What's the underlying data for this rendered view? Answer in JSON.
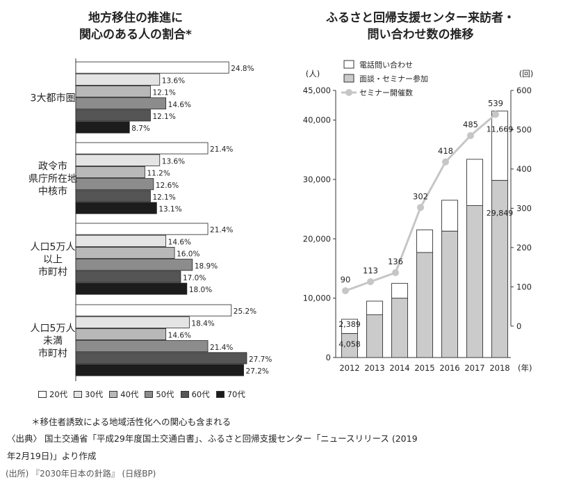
{
  "left": {
    "title_line1": "地方移住の推進に",
    "title_line2": "関心のある人の割合*"
  },
  "right": {
    "title_line1": "ふるさと回帰支援センター来訪者・",
    "title_line2": "問い合わせ数の推移",
    "y_unit_left": "(人)",
    "y_unit_right": "(回)",
    "x_unit": "(年)"
  },
  "notes": {
    "footnote": "＊移住者誘致による地域活性化への関心も含まれる",
    "source_line1": "〈出典〉 国土交通省「平成29年度国土交通白書」、ふるさと回帰支援センター「ニュースリリース (2019",
    "source_line2": "年2月19日)」より作成",
    "credit": "(出所) 『2030年日本の針路』 (日経BP)"
  },
  "colors": {
    "age20": "#ffffff",
    "age30": "#e4e4e4",
    "age40": "#b8b8b8",
    "age50": "#8c8c8c",
    "age60": "#555555",
    "age70": "#1c1c1c",
    "inquiry": "#ffffff",
    "seminar_bar": "#cbcbcb",
    "line": "#c6c6c6"
  },
  "chart_data": [
    {
      "type": "bar",
      "orientation": "horizontal",
      "categories": [
        {
          "label_lines": [
            "3大都市圏"
          ],
          "values": [
            24.8,
            13.6,
            12.1,
            14.6,
            12.1,
            8.7
          ]
        },
        {
          "label_lines": [
            "政令市",
            "県庁所在地",
            "中核市"
          ],
          "values": [
            21.4,
            13.6,
            11.2,
            12.6,
            12.1,
            13.1
          ]
        },
        {
          "label_lines": [
            "人口5万人",
            "以上",
            "市町村"
          ],
          "values": [
            21.4,
            14.6,
            16.0,
            18.9,
            17.0,
            18.0
          ]
        },
        {
          "label_lines": [
            "人口5万人",
            "未満",
            "市町村"
          ],
          "values": [
            25.2,
            18.4,
            14.6,
            21.4,
            27.7,
            27.2
          ]
        }
      ],
      "series_names": [
        "20代",
        "30代",
        "40代",
        "50代",
        "60代",
        "70代"
      ],
      "unit": "%",
      "xlim": [
        0,
        28.5
      ]
    },
    {
      "type": "bar",
      "stacked": true,
      "x": [
        "2012",
        "2013",
        "2014",
        "2015",
        "2016",
        "2017",
        "2018"
      ],
      "series": [
        {
          "name": "面談・セミナー参加",
          "values": [
            4058,
            7200,
            10000,
            17700,
            21300,
            25600,
            29849
          ]
        },
        {
          "name": "電話問い合わせ",
          "values": [
            2389,
            2300,
            2500,
            3800,
            5200,
            7800,
            11669
          ]
        }
      ],
      "bar_labels": {
        "2012": [
          "2,389",
          "4,058"
        ],
        "2018": [
          "11,669",
          "29,849"
        ]
      },
      "ylim": [
        0,
        45000
      ],
      "yticks": [
        "0",
        "10,000",
        "20,000",
        "30,000",
        "40,000",
        "45,000"
      ],
      "ytick_values": [
        0,
        10000,
        20000,
        30000,
        40000,
        45000
      ],
      "line": {
        "name": "セミナー開催数",
        "values": [
          90,
          113,
          136,
          302,
          418,
          485,
          539
        ],
        "labels": [
          "90",
          "113",
          "136",
          "302",
          "418",
          "485",
          "539"
        ],
        "axis": "right",
        "ylim": [
          -80,
          600
        ],
        "yticks": [
          "0",
          "100",
          "200",
          "300",
          "400",
          "500",
          "600"
        ],
        "ytick_values": [
          0,
          100,
          200,
          300,
          400,
          500,
          600
        ]
      },
      "legend_position": "top-left"
    }
  ]
}
